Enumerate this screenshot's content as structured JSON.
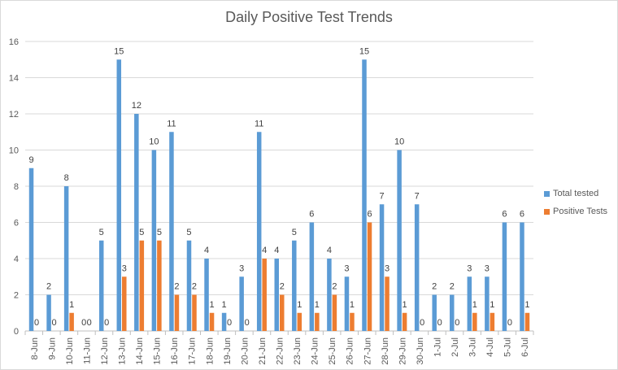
{
  "chart_data": {
    "type": "bar",
    "title": "Daily Positive Test Trends",
    "xlabel": "",
    "ylabel": "",
    "ylim": [
      0,
      16
    ],
    "yticks": [
      0,
      2,
      4,
      6,
      8,
      10,
      12,
      14,
      16
    ],
    "grid": true,
    "legend_position": "right",
    "categories": [
      "8-Jun",
      "9-Jun",
      "10-Jun",
      "11-Jun",
      "12-Jun",
      "13-Jun",
      "14-Jun",
      "15-Jun",
      "16-Jun",
      "17-Jun",
      "18-Jun",
      "19-Jun",
      "20-Jun",
      "21-Jun",
      "22-Jun",
      "23-Jun",
      "24-Jun",
      "25-Jun",
      "26-Jun",
      "27-Jun",
      "28-Jun",
      "29-Jun",
      "30-Jun",
      "1-Jul",
      "2-Jul",
      "3-Jul",
      "4-Jul",
      "5-Jul",
      "6-Jul"
    ],
    "series": [
      {
        "name": "Total tested",
        "color": "#5b9bd5",
        "values": [
          9,
          2,
          8,
          0,
          5,
          15,
          12,
          10,
          11,
          5,
          4,
          1,
          3,
          11,
          4,
          5,
          6,
          4,
          3,
          15,
          7,
          10,
          7,
          2,
          2,
          3,
          3,
          6,
          6
        ]
      },
      {
        "name": "Positive Tests",
        "color": "#ed7d31",
        "values": [
          0,
          0,
          1,
          0,
          0,
          3,
          5,
          5,
          2,
          2,
          1,
          0,
          0,
          4,
          2,
          1,
          1,
          2,
          1,
          6,
          3,
          1,
          0,
          0,
          0,
          1,
          1,
          0,
          1
        ]
      }
    ]
  }
}
